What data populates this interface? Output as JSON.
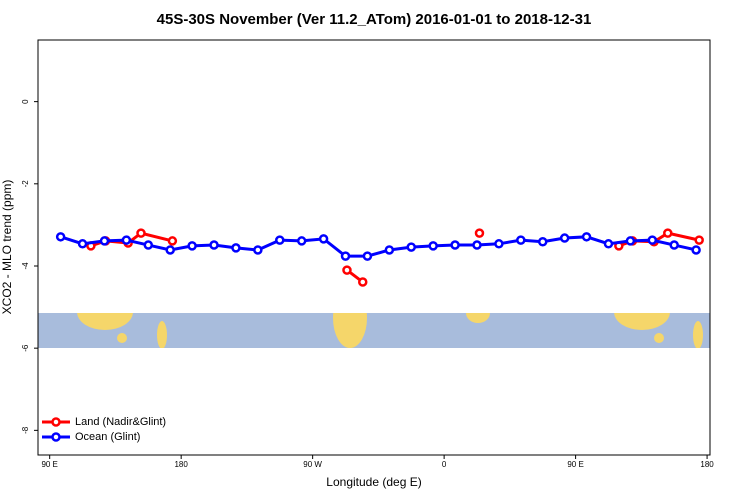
{
  "chart_data": {
    "type": "line",
    "title": "45S-30S November (Ver 11.2_ATom)   2016-01-01 to 2018-12-31",
    "x_label": "Longitude (deg E)",
    "y_label": "XCO2 - MLO trend (ppm)",
    "xlim": [
      82,
      542
    ],
    "ylim": [
      -8.6,
      1.5
    ],
    "xticks": [
      {
        "value": 90,
        "label": "90 E"
      },
      180,
      {
        "value": 270,
        "label": "90 W"
      },
      {
        "value": 360,
        "label": "0"
      },
      {
        "value": 450,
        "label": "90 E"
      },
      {
        "value": 540,
        "label": "180"
      }
    ],
    "yticks": [
      0,
      -2,
      -4,
      -6,
      -8
    ],
    "legend": "bottom-left",
    "series": [
      {
        "name": "Land (Nadir&Glint)",
        "color": "#ff0000",
        "x": [
          118.2,
          128.3,
          143.7,
          152.5,
          174.0,
          null,
          293.5,
          304.3,
          null,
          384.2,
          null,
          479.6,
          489.0,
          503.7,
          513.1,
          534.6
        ],
        "values": [
          -3.51,
          -3.39,
          -3.44,
          -3.2,
          -3.39,
          null,
          -4.1,
          -4.39,
          null,
          -3.2,
          null,
          -3.51,
          -3.39,
          -3.41,
          -3.2,
          -3.37
        ]
      },
      {
        "name": "Ocean (Glint)",
        "color": "#0000ff",
        "x": [
          97.5,
          112.5,
          127.5,
          142.5,
          157.5,
          172.5,
          187.5,
          202.5,
          217.5,
          232.5,
          247.5,
          262.5,
          277.5,
          292.5,
          307.5,
          322.5,
          337.5,
          352.5,
          367.5,
          382.5,
          397.5,
          412.5,
          427.5,
          442.5,
          457.5,
          472.5,
          487.5,
          502.5,
          517.5,
          532.5
        ],
        "values": [
          -3.29,
          -3.46,
          -3.39,
          -3.37,
          -3.49,
          -3.61,
          -3.51,
          -3.49,
          -3.56,
          -3.61,
          -3.37,
          -3.39,
          -3.34,
          -3.76,
          -3.76,
          -3.61,
          -3.54,
          -3.51,
          -3.49,
          -3.49,
          -3.46,
          -3.37,
          -3.41,
          -3.32,
          -3.29,
          -3.46,
          -3.39,
          -3.37,
          -3.49,
          -3.61
        ]
      }
    ]
  }
}
